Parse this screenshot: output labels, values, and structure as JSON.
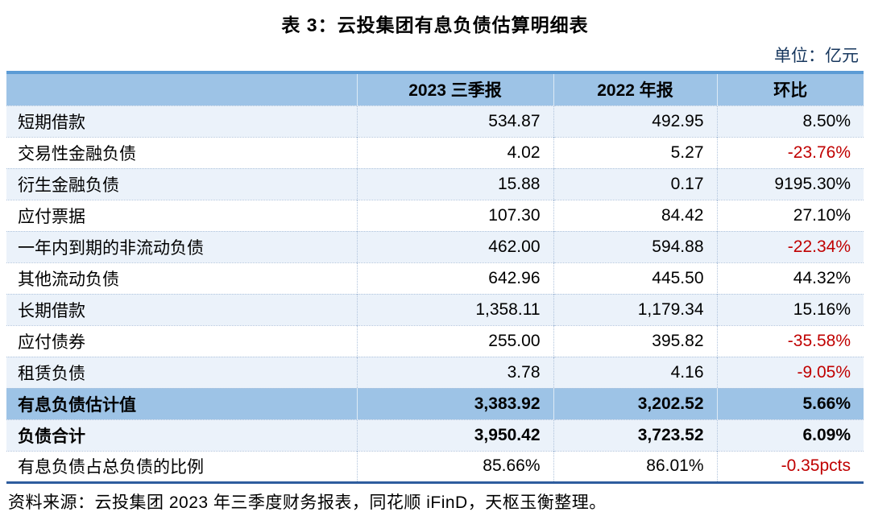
{
  "title": "表 3：云投集团有息负债估算明细表",
  "unit_label": "单位：亿元",
  "table": {
    "columns": [
      "",
      "2023 三季报",
      "2022 年报",
      "环比"
    ],
    "rows": [
      {
        "label": "短期借款",
        "v2023": "534.87",
        "v2022": "492.95",
        "qoq": "8.50%",
        "qoq_red": false
      },
      {
        "label": "交易性金融负债",
        "v2023": "4.02",
        "v2022": "5.27",
        "qoq": "-23.76%",
        "qoq_red": true
      },
      {
        "label": "衍生金融负债",
        "v2023": "15.88",
        "v2022": "0.17",
        "qoq": "9195.30%",
        "qoq_red": false
      },
      {
        "label": "应付票据",
        "v2023": "107.30",
        "v2022": "84.42",
        "qoq": "27.10%",
        "qoq_red": false
      },
      {
        "label": "一年内到期的非流动负债",
        "v2023": "462.00",
        "v2022": "594.88",
        "qoq": "-22.34%",
        "qoq_red": true
      },
      {
        "label": "其他流动负债",
        "v2023": "642.96",
        "v2022": "445.50",
        "qoq": "44.32%",
        "qoq_red": false
      },
      {
        "label": "长期借款",
        "v2023": "1,358.11",
        "v2022": "1,179.34",
        "qoq": "15.16%",
        "qoq_red": false
      },
      {
        "label": "应付债券",
        "v2023": "255.00",
        "v2022": "395.82",
        "qoq": "-35.58%",
        "qoq_red": true
      },
      {
        "label": "租赁负债",
        "v2023": "3.78",
        "v2022": "4.16",
        "qoq": "-9.05%",
        "qoq_red": true
      },
      {
        "label": "有息负债估计值",
        "v2023": "3,383.92",
        "v2022": "3,202.52",
        "qoq": "5.66%",
        "qoq_red": false
      },
      {
        "label": "负债合计",
        "v2023": "3,950.42",
        "v2022": "3,723.52",
        "qoq": "6.09%",
        "qoq_red": false
      },
      {
        "label": "有息负债占总负债的比例",
        "v2023": "85.66%",
        "v2022": "86.01%",
        "qoq": "-0.35pcts",
        "qoq_red": true
      }
    ]
  },
  "source": "资料来源：云投集团 2023 年三季度财务报表，同花顺 iFinD，天枢玉衡整理。",
  "colors": {
    "header_blue": "#9DC3E6",
    "row_blue": "#EBF2FA",
    "top_border": "#5B9BD5",
    "bottom_border": "#2E5D9E",
    "unit_text": "#17375E",
    "negative_red": "#C00000",
    "divider": "#AFC3DC"
  }
}
